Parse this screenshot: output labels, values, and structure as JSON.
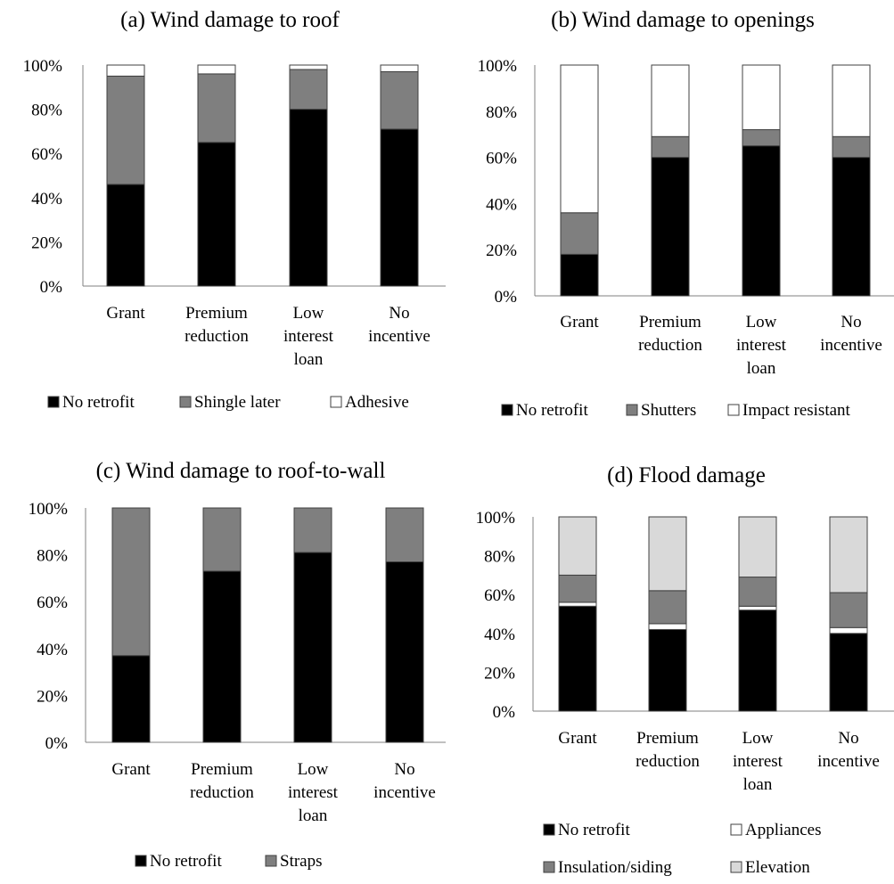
{
  "colors": {
    "no_retrofit": "#000000",
    "mid_gray": "#7f7f7f",
    "white": "#ffffff",
    "light_gray": "#d9d9d9",
    "axis": "#808080",
    "outline": "#404040"
  },
  "chart_data": [
    {
      "type": "bar",
      "stacked": true,
      "title": "(a) Wind damage to roof",
      "categories": [
        [
          "Grant"
        ],
        [
          "Premium",
          "reduction"
        ],
        [
          "Low",
          "interest",
          "loan"
        ],
        [
          "No",
          "incentive"
        ]
      ],
      "ylim": [
        0,
        100
      ],
      "yticks": [
        "0%",
        "20%",
        "40%",
        "60%",
        "80%",
        "100%"
      ],
      "legend_position": "bottom",
      "series": [
        {
          "name": "No retrofit",
          "color": "#000000",
          "values": [
            46,
            65,
            80,
            71
          ]
        },
        {
          "name": "Shingle later",
          "color": "#7f7f7f",
          "values": [
            49,
            31,
            18,
            26
          ]
        },
        {
          "name": "Adhesive",
          "color": "#ffffff",
          "values": [
            5,
            4,
            2,
            3
          ]
        }
      ]
    },
    {
      "type": "bar",
      "stacked": true,
      "title": "(b) Wind damage to openings",
      "categories": [
        [
          "Grant"
        ],
        [
          "Premium",
          "reduction"
        ],
        [
          "Low",
          "interest",
          "loan"
        ],
        [
          "No",
          "incentive"
        ]
      ],
      "ylim": [
        0,
        100
      ],
      "yticks": [
        "0%",
        "20%",
        "40%",
        "60%",
        "80%",
        "100%"
      ],
      "legend_position": "bottom",
      "series": [
        {
          "name": "No retrofit",
          "color": "#000000",
          "values": [
            18,
            60,
            65,
            60
          ]
        },
        {
          "name": "Shutters",
          "color": "#7f7f7f",
          "values": [
            18,
            9,
            7,
            9
          ]
        },
        {
          "name": "Impact resistant",
          "color": "#ffffff",
          "values": [
            64,
            31,
            28,
            31
          ]
        }
      ]
    },
    {
      "type": "bar",
      "stacked": true,
      "title": "(c) Wind damage to roof-to-wall",
      "categories": [
        [
          "Grant"
        ],
        [
          "Premium",
          "reduction"
        ],
        [
          "Low",
          "interest",
          "loan"
        ],
        [
          "No",
          "incentive"
        ]
      ],
      "ylim": [
        0,
        100
      ],
      "yticks": [
        "0%",
        "20%",
        "40%",
        "60%",
        "80%",
        "100%"
      ],
      "legend_position": "bottom",
      "series": [
        {
          "name": "No retrofit",
          "color": "#000000",
          "values": [
            37,
            73,
            81,
            77
          ]
        },
        {
          "name": "Straps",
          "color": "#7f7f7f",
          "values": [
            63,
            27,
            19,
            23
          ]
        }
      ]
    },
    {
      "type": "bar",
      "stacked": true,
      "title": "(d) Flood damage",
      "categories": [
        [
          "Grant"
        ],
        [
          "Premium",
          "reduction"
        ],
        [
          "Low",
          "interest",
          "loan"
        ],
        [
          "No",
          "incentive"
        ]
      ],
      "ylim": [
        0,
        100
      ],
      "yticks": [
        "0%",
        "20%",
        "40%",
        "60%",
        "80%",
        "100%"
      ],
      "legend_position": "bottom",
      "series": [
        {
          "name": "No retrofit",
          "color": "#000000",
          "values": [
            54,
            42,
            52,
            40
          ]
        },
        {
          "name": "Appliances",
          "color": "#ffffff",
          "values": [
            2,
            3,
            2,
            3
          ]
        },
        {
          "name": "Insulation/siding",
          "color": "#7f7f7f",
          "values": [
            14,
            17,
            15,
            18
          ]
        },
        {
          "name": "Elevation",
          "color": "#d9d9d9",
          "values": [
            30,
            38,
            31,
            39
          ]
        }
      ]
    }
  ]
}
